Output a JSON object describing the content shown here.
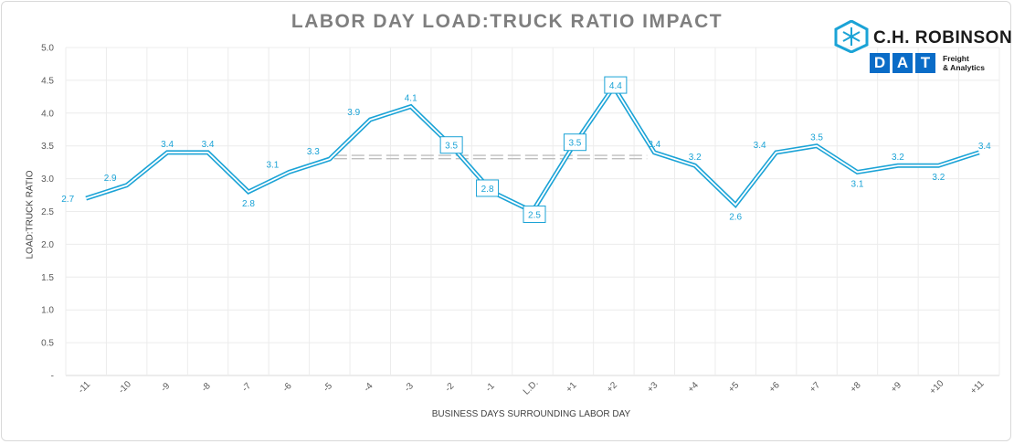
{
  "title": "LABOR DAY LOAD:TRUCK RATIO IMPACT",
  "logos": {
    "chr_name": "C.H. ROBINSON",
    "dat_letters": [
      "D",
      "A",
      "T"
    ],
    "dat_tagline": "Freight\n& Analytics",
    "chr_icon": "snowflake-cube-icon",
    "colors": {
      "chr_blue": "#1ba3d6",
      "dat_blue": "#0a6cc7"
    }
  },
  "chart_data": {
    "type": "line",
    "title": "LABOR DAY LOAD:TRUCK RATIO IMPACT",
    "xlabel": "BUSINESS DAYS SURROUNDING LABOR DAY",
    "ylabel": "LOAD:TRUCK RATIO",
    "categories": [
      "-11",
      "-10",
      "-9",
      "-8",
      "-7",
      "-6",
      "-5",
      "-4",
      "-3",
      "-2",
      "-1",
      "L.D.",
      "+1",
      "+2",
      "+3",
      "+4",
      "+5",
      "+6",
      "+7",
      "+8",
      "+9",
      "+10",
      "+11"
    ],
    "yticks": [
      "-",
      "0.5",
      "1.0",
      "1.5",
      "2.0",
      "2.5",
      "3.0",
      "3.5",
      "4.0",
      "4.5",
      "5.0"
    ],
    "ylim": [
      0,
      5
    ],
    "grid": true,
    "series": [
      {
        "values": [
          2.7,
          2.9,
          3.4,
          3.4,
          2.8,
          3.1,
          3.3,
          3.9,
          4.1,
          3.5,
          2.8,
          2.5,
          3.5,
          4.4,
          3.4,
          3.2,
          2.6,
          3.4,
          3.5,
          3.1,
          3.2,
          3.2,
          3.4
        ],
        "labels": [
          "2.7",
          "2.9",
          "3.4",
          "3.4",
          "2.8",
          "3.1",
          "3.3",
          "3.9",
          "4.1",
          "3.5",
          "2.8",
          "2.5",
          "3.5",
          "4.4",
          "3.4",
          "3.2",
          "2.6",
          "3.4",
          "3.5",
          "3.1",
          "3.2",
          "3.2",
          "3.4"
        ],
        "boxed_indices": [
          9,
          10,
          11,
          12,
          13
        ],
        "color": "#1ba3d6"
      }
    ],
    "reference_line": {
      "value": 3.33,
      "from_index": 6,
      "to_index": 14,
      "color": "#bfbfbf"
    }
  }
}
